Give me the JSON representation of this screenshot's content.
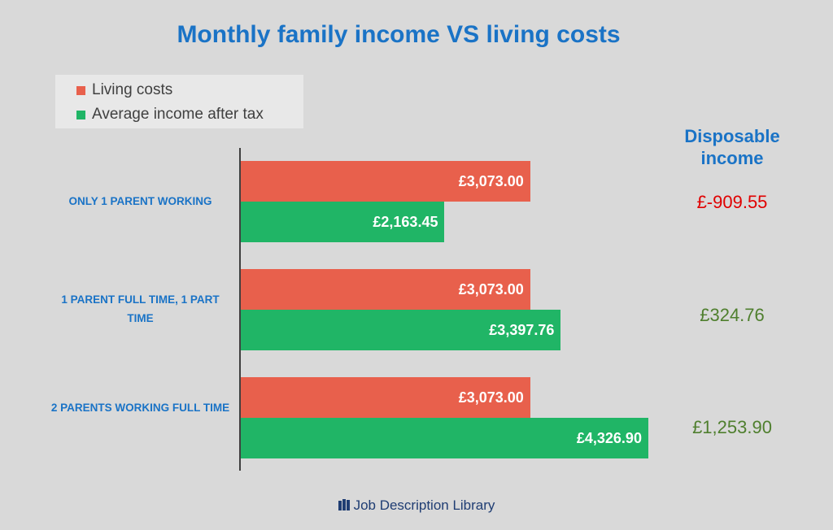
{
  "chart_data": {
    "type": "bar",
    "orientation": "horizontal",
    "title": "Monthly family income VS living costs",
    "categories": [
      "ONLY 1 PARENT WORKING",
      "1 PARENT FULL TIME, 1 PART TIME",
      "2 PARENTS WORKING FULL TIME"
    ],
    "series": [
      {
        "name": "Living costs",
        "color": "#e8604c",
        "values": [
          3073.0,
          3073.0,
          3073.0
        ],
        "labels": [
          "£3,073.00",
          "£3,073.00",
          "£3,073.00"
        ]
      },
      {
        "name": "Average income after tax",
        "color": "#20b566",
        "values": [
          2163.45,
          3397.76,
          4326.9
        ],
        "labels": [
          "£2,163.45",
          "£3,397.76",
          "£4,326.90"
        ]
      }
    ],
    "xlim": [
      0,
      4500
    ],
    "legend": "top-left",
    "grid": false
  },
  "disposable": {
    "header": "Disposable income",
    "values": [
      {
        "text": "£-909.55",
        "color": "#e00000"
      },
      {
        "text": "£324.76",
        "color": "#4f7f2e"
      },
      {
        "text": "£1,253.90",
        "color": "#4f7f2e"
      }
    ]
  },
  "footer": {
    "brand": "Job Description Library",
    "icon": "book-icon"
  }
}
